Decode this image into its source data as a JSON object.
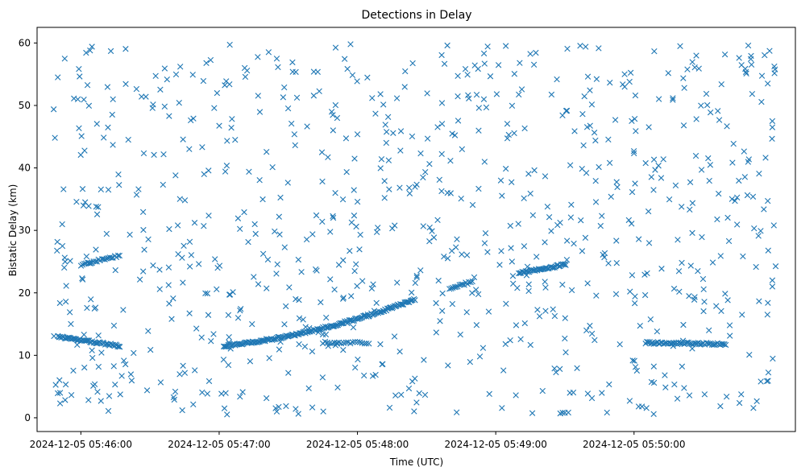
{
  "chart_data": {
    "type": "scatter",
    "title": "Detections in Delay",
    "xlabel": "Time (UTC)",
    "ylabel": "Bistatic Delay (km)",
    "x_unit": "timestamp",
    "xlim": [
      "2024-12-05 05:45:41",
      "2024-12-05 05:51:10"
    ],
    "ylim": [
      -2.2,
      62.5
    ],
    "x_ticks": [
      "2024-12-05 05:46:00",
      "2024-12-05 05:47:00",
      "2024-12-05 05:48:00",
      "2024-12-05 05:49:00",
      "2024-12-05 05:50:00"
    ],
    "y_ticks": [
      0,
      10,
      20,
      30,
      40,
      50,
      60
    ],
    "grid": false,
    "marker": "x",
    "color": "#1f77b4",
    "series": [
      {
        "tracks": [
          {
            "t_start": "2024-12-05 05:45:50",
            "t_end": "2024-12-05 05:46:17",
            "y_start": 13.0,
            "y_end": 11.5,
            "step_s": 0.5,
            "curve": "linear"
          },
          {
            "t_start": "2024-12-05 05:47:02",
            "t_end": "2024-12-05 05:48:25",
            "y_start": 11.5,
            "y_end": 19.0,
            "step_s": 0.5,
            "curve": "quadratic"
          },
          {
            "t_start": "2024-12-05 05:46:00",
            "t_end": "2024-12-05 05:46:17",
            "y_start": 24.5,
            "y_end": 26.0,
            "step_s": 0.7,
            "curve": "linear"
          },
          {
            "t_start": "2024-12-05 05:48:40",
            "t_end": "2024-12-05 05:48:50",
            "y_start": 20.8,
            "y_end": 21.8,
            "step_s": 0.7,
            "curve": "linear"
          },
          {
            "t_start": "2024-12-05 05:49:10",
            "t_end": "2024-12-05 05:49:30",
            "y_start": 23.2,
            "y_end": 24.5,
            "step_s": 0.5,
            "curve": "linear"
          },
          {
            "t_start": "2024-12-05 05:50:05",
            "t_end": "2024-12-05 05:50:40",
            "y_start": 12.0,
            "y_end": 11.8,
            "step_s": 0.6,
            "curve": "linear"
          },
          {
            "t_start": "2024-12-05 05:47:45",
            "t_end": "2024-12-05 05:48:05",
            "y_start": 12.0,
            "y_end": 12.0,
            "step_s": 1.0,
            "curve": "linear"
          }
        ],
        "scatter": {
          "count": 820,
          "t_start": "2024-12-05 05:45:48",
          "t_end": "2024-12-05 05:51:02",
          "y_min": 0.5,
          "y_max": 59.8,
          "seed": 20241205
        },
        "points": [
          {
            "t": "2024-12-05 05:45:50",
            "y": 54.5
          },
          {
            "t": "2024-12-05 05:45:51",
            "y": 4.0
          },
          {
            "t": "2024-12-05 05:45:51",
            "y": 2.3
          },
          {
            "t": "2024-12-05 05:45:52",
            "y": 27.5
          },
          {
            "t": "2024-12-05 05:45:53",
            "y": 57.5
          },
          {
            "t": "2024-12-05 05:46:04",
            "y": 58.8
          },
          {
            "t": "2024-12-05 05:46:13",
            "y": 58.7
          },
          {
            "t": "2024-12-05 05:47:25",
            "y": 57.5
          },
          {
            "t": "2024-12-05 05:47:57",
            "y": 59.8
          },
          {
            "t": "2024-12-05 05:48:39",
            "y": 59.6
          },
          {
            "t": "2024-12-05 05:49:39",
            "y": 59.4
          },
          {
            "t": "2024-12-05 05:50:20",
            "y": 59.5
          },
          {
            "t": "2024-12-05 05:46:44",
            "y": 1.2
          },
          {
            "t": "2024-12-05 05:47:25",
            "y": 1.0
          },
          {
            "t": "2024-12-05 05:49:28",
            "y": 0.7
          },
          {
            "t": "2024-12-05 05:49:29",
            "y": 0.8
          },
          {
            "t": "2024-12-05 05:49:30",
            "y": 0.8
          },
          {
            "t": "2024-12-05 05:50:02",
            "y": 1.8
          },
          {
            "t": "2024-12-05 05:50:55",
            "y": 5.8
          },
          {
            "t": "2024-12-05 05:51:00",
            "y": 21.0
          },
          {
            "t": "2024-12-05 05:51:00",
            "y": 22.0
          },
          {
            "t": "2024-12-05 05:51:00",
            "y": 46.5
          },
          {
            "t": "2024-12-05 05:51:00",
            "y": 47.5
          },
          {
            "t": "2024-12-05 05:50:58",
            "y": 53.5
          }
        ]
      }
    ]
  }
}
